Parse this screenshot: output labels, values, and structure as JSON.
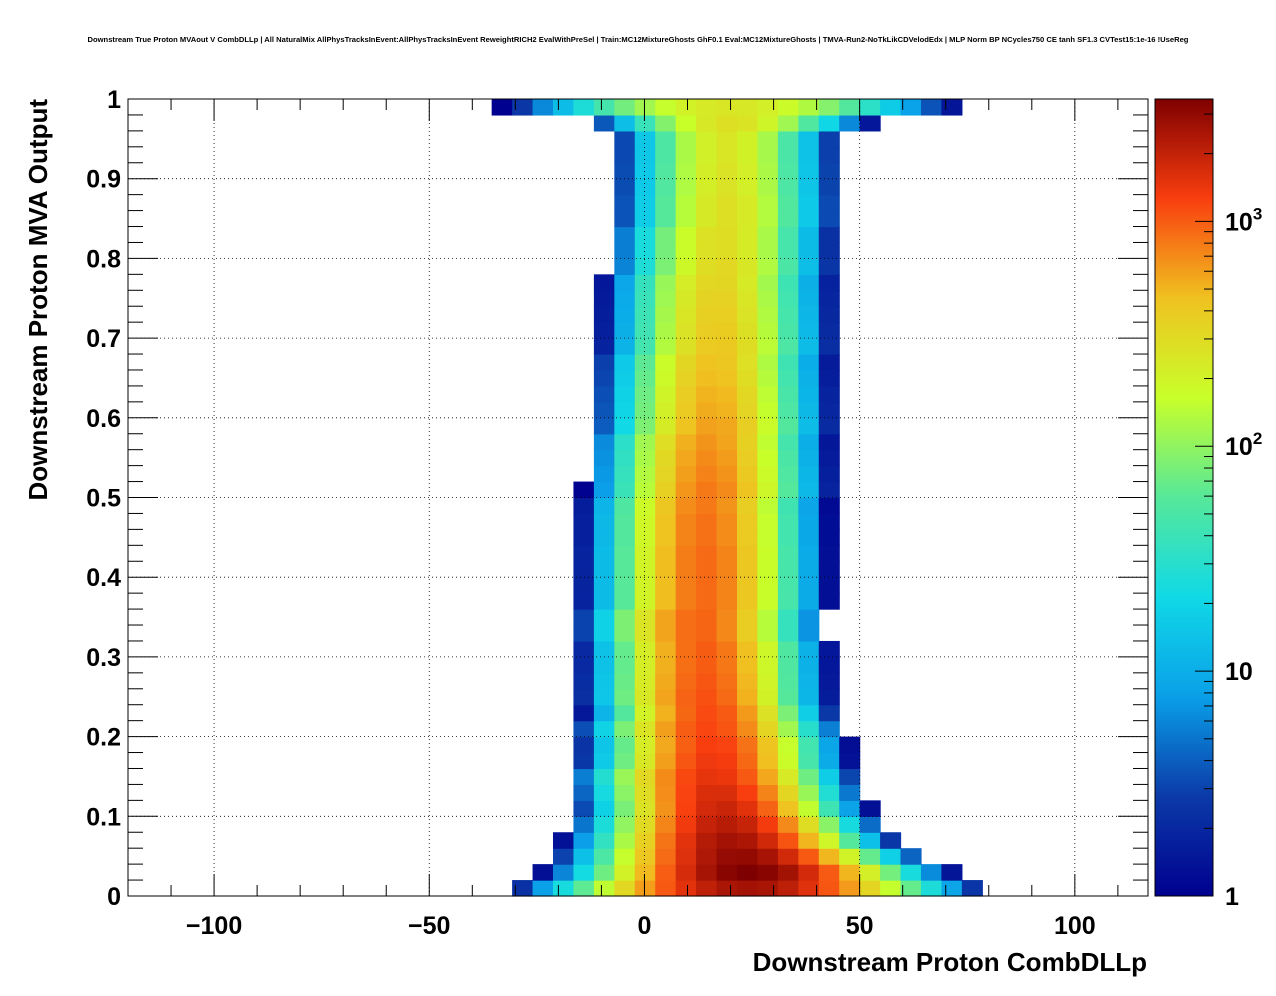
{
  "chart_data": {
    "type": "heatmap",
    "title": "Downstream True Proton MVAout V CombDLLp | All NaturalMix AllPhysTracksInEvent:AllPhysTracksInEvent ReweightRICH2 EvalWithPreSel | Train:MC12MixtureGhosts GhF0.1 Eval:MC12MixtureGhosts | TMVA-Run2-NoTkLikCDVelodEdx | MLP Norm BP NCycles750 CE tanh SF1.3 CVTest15:1e-16 !UseReg",
    "xlabel": "Downstream Proton CombDLLp",
    "ylabel": "Downstream Proton MVA Output",
    "xlim": [
      -120,
      117
    ],
    "ylim": [
      0,
      1
    ],
    "x_ticks": [
      {
        "value": -100,
        "label": "−100"
      },
      {
        "value": -50,
        "label": "−50"
      },
      {
        "value": 0,
        "label": "0"
      },
      {
        "value": 50,
        "label": "50"
      },
      {
        "value": 100,
        "label": "100"
      }
    ],
    "y_ticks": [
      {
        "value": 0,
        "label": "0"
      },
      {
        "value": 0.1,
        "label": "0.1"
      },
      {
        "value": 0.2,
        "label": "0.2"
      },
      {
        "value": 0.3,
        "label": "0.3"
      },
      {
        "value": 0.4,
        "label": "0.4"
      },
      {
        "value": 0.5,
        "label": "0.5"
      },
      {
        "value": 0.6,
        "label": "0.6"
      },
      {
        "value": 0.7,
        "label": "0.7"
      },
      {
        "value": 0.8,
        "label": "0.8"
      },
      {
        "value": 0.9,
        "label": "0.9"
      },
      {
        "value": 1,
        "label": "1"
      }
    ],
    "grid": true,
    "colorbar": {
      "scale": "log",
      "zlim": [
        1,
        3500
      ],
      "ticks": [
        {
          "value": 1,
          "label": "1",
          "sup": ""
        },
        {
          "value": 10,
          "label": "10",
          "sup": ""
        },
        {
          "value": 100,
          "label": "10",
          "sup": "2"
        },
        {
          "value": 1000,
          "label": "10",
          "sup": "3"
        }
      ]
    },
    "bins": {
      "x_start": -45,
      "x_width": 4.75,
      "y_start": 0,
      "y_width": 0.02,
      "profile_center": [
        24,
        24,
        22,
        20,
        19,
        18,
        17,
        16,
        16,
        16,
        15,
        15,
        14,
        14,
        14,
        14,
        13,
        13,
        14,
        14,
        14,
        14,
        14,
        14,
        14,
        15,
        15,
        15,
        15,
        16,
        16,
        16,
        16,
        16,
        17,
        17,
        17,
        17,
        17,
        18,
        18,
        18,
        19,
        19,
        19,
        19,
        19,
        19,
        20,
        20
      ],
      "profile_sigma": [
        14,
        12,
        11,
        10,
        9.5,
        9,
        9,
        9,
        8.5,
        8.5,
        8.5,
        8,
        8,
        8,
        8,
        8,
        8,
        8,
        8,
        8,
        8,
        8,
        8,
        8,
        8,
        8,
        8,
        8,
        8,
        8,
        8,
        8,
        8,
        8,
        8,
        8,
        8,
        8,
        8,
        8,
        8,
        8,
        8,
        8,
        8,
        8,
        8,
        8,
        10,
        16
      ],
      "profile_peak": [
        2600,
        3500,
        3000,
        2600,
        2200,
        1900,
        1700,
        1500,
        1400,
        1300,
        1200,
        1150,
        1100,
        1050,
        1000,
        1000,
        950,
        950,
        900,
        900,
        900,
        900,
        850,
        850,
        800,
        800,
        750,
        700,
        650,
        600,
        550,
        520,
        480,
        450,
        420,
        400,
        380,
        360,
        340,
        320,
        300,
        300,
        280,
        280,
        260,
        260,
        250,
        250,
        280,
        250
      ]
    }
  }
}
